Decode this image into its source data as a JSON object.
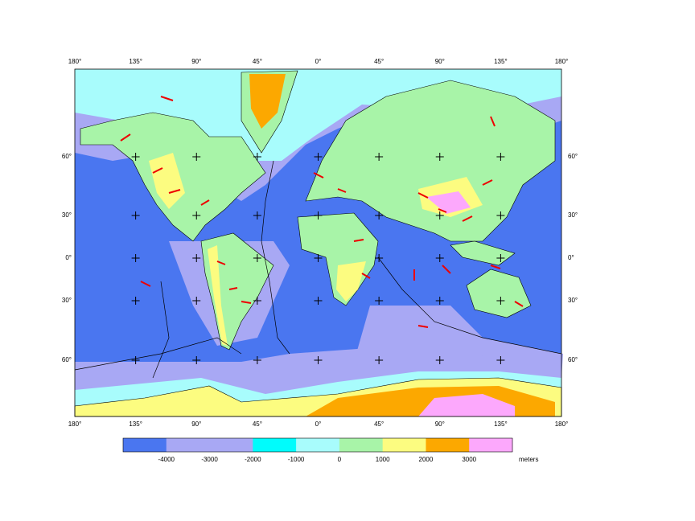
{
  "map": {
    "lon_labels_top": [
      "180°",
      "135°",
      "90°",
      "45°",
      "0°",
      "45°",
      "90°",
      "135°",
      "180°"
    ],
    "lon_labels_bottom": [
      "180°",
      "135°",
      "90°",
      "45°",
      "0°",
      "45°",
      "90°",
      "135°",
      "180°"
    ],
    "lat_labels_left": [
      "60°",
      "30°",
      "0°",
      "30°",
      "60°"
    ],
    "lat_labels_right": [
      "60°",
      "30°",
      "0°",
      "30°",
      "60°"
    ]
  },
  "colorbar": {
    "colors": [
      "#4a76f0",
      "#a8a8f4",
      "#a8a8f4",
      "#00fcfc",
      "#a8fcfc",
      "#a8f4a8",
      "#fcfc80",
      "#fca800",
      "#fca8fc"
    ],
    "ticks": [
      -4000,
      -3000,
      -2000,
      -1000,
      0,
      1000,
      2000,
      3000
    ],
    "unit": "meters"
  }
}
